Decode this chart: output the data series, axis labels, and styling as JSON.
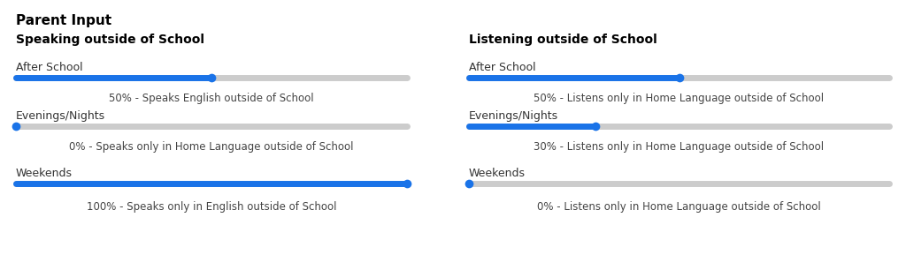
{
  "title": "Parent Input",
  "background_color": "#ffffff",
  "left_section": {
    "heading": "Speaking outside of School",
    "sliders": [
      {
        "label": "After School",
        "value": 0.5,
        "description": "50% - Speaks English outside of School"
      },
      {
        "label": "Evenings/Nights",
        "value": 0.0,
        "description": "0% - Speaks only in Home Language outside of School"
      },
      {
        "label": "Weekends",
        "value": 1.0,
        "description": "100% - Speaks only in English outside of School"
      }
    ]
  },
  "right_section": {
    "heading": "Listening outside of School",
    "sliders": [
      {
        "label": "After School",
        "value": 0.5,
        "description": "50% - Listens only in Home Language outside of School"
      },
      {
        "label": "Evenings/Nights",
        "value": 0.3,
        "description": "30% - Listens only in Home Language outside of School"
      },
      {
        "label": "Weekends",
        "value": 0.0,
        "description": "0% - Listens only in Home Language outside of School"
      }
    ]
  },
  "track_color": "#cccccc",
  "fill_color": "#1a73e8",
  "thumb_color": "#1a73e8",
  "title_fontsize": 11,
  "heading_fontsize": 10,
  "label_fontsize": 9,
  "desc_fontsize": 8.5,
  "label_color": "#333333",
  "heading_color": "#000000",
  "title_color": "#000000",
  "desc_color": "#444444",
  "track_linewidth": 5,
  "thumb_size": 7
}
